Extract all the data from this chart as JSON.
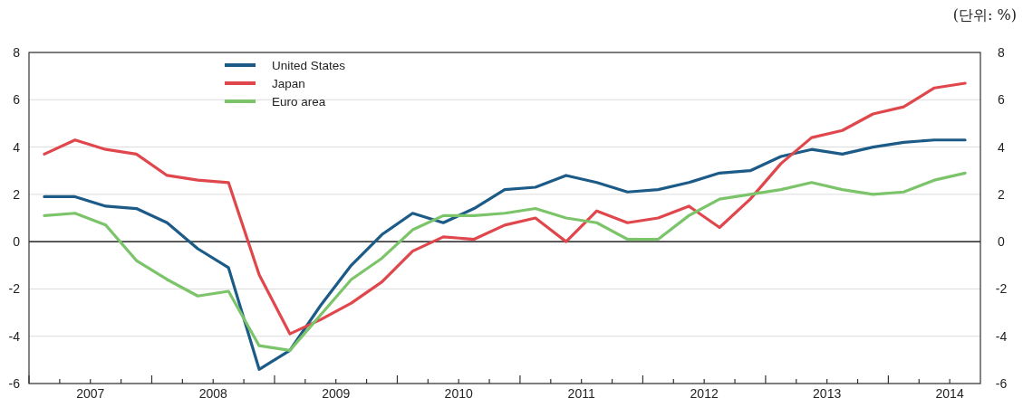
{
  "chart_data": {
    "type": "line",
    "x": [
      2007.125,
      2007.375,
      2007.625,
      2007.875,
      2008.125,
      2008.375,
      2008.625,
      2008.875,
      2009.125,
      2009.375,
      2009.625,
      2009.875,
      2010.125,
      2010.375,
      2010.625,
      2010.875,
      2011.125,
      2011.375,
      2011.625,
      2011.875,
      2012.125,
      2012.375,
      2012.625,
      2012.875,
      2013.125,
      2013.375,
      2013.625,
      2013.875,
      2014.125,
      2014.375,
      2014.625
    ],
    "series": [
      {
        "name": "United States",
        "color": "#1c5b87",
        "values": [
          1.9,
          1.9,
          1.5,
          1.4,
          0.8,
          -0.3,
          -1.1,
          -5.4,
          -4.6,
          -2.7,
          -1.0,
          0.3,
          1.2,
          0.8,
          1.4,
          2.2,
          2.3,
          2.8,
          2.5,
          2.1,
          2.2,
          2.5,
          2.9,
          3.0,
          3.6,
          3.9,
          3.7,
          4.0,
          4.2,
          4.3,
          4.3
        ]
      },
      {
        "name": "Japan",
        "color": "#e0474c",
        "values": [
          3.7,
          4.3,
          3.9,
          3.7,
          2.8,
          2.6,
          2.5,
          -1.4,
          -3.9,
          -3.3,
          -2.6,
          -1.7,
          -0.4,
          0.2,
          0.1,
          0.7,
          1.0,
          0.0,
          1.3,
          0.8,
          1.0,
          1.5,
          0.6,
          1.8,
          3.3,
          4.4,
          4.7,
          5.4,
          5.7,
          6.5,
          6.7
        ]
      },
      {
        "name": "Euro area",
        "color": "#7cc46a",
        "values": [
          1.1,
          1.2,
          0.7,
          -0.8,
          -1.6,
          -2.3,
          -2.1,
          -4.4,
          -4.6,
          -3.1,
          -1.6,
          -0.7,
          0.5,
          1.1,
          1.1,
          1.2,
          1.4,
          1.0,
          0.8,
          0.1,
          0.1,
          1.1,
          1.8,
          2.0,
          2.2,
          2.5,
          2.2,
          2.0,
          2.1,
          2.6,
          2.9
        ]
      }
    ],
    "xlim": [
      2007,
      2014.75
    ],
    "xticks": [
      {
        "value": 2007,
        "label": null
      },
      {
        "value": 2007.25,
        "label": null
      },
      {
        "value": 2007.5,
        "label": "2007"
      },
      {
        "value": 2007.75,
        "label": null
      },
      {
        "value": 2008,
        "label": null
      },
      {
        "value": 2008.25,
        "label": null
      },
      {
        "value": 2008.5,
        "label": "2008"
      },
      {
        "value": 2008.75,
        "label": null
      },
      {
        "value": 2009,
        "label": null
      },
      {
        "value": 2009.25,
        "label": null
      },
      {
        "value": 2009.5,
        "label": "2009"
      },
      {
        "value": 2009.75,
        "label": null
      },
      {
        "value": 2010,
        "label": null
      },
      {
        "value": 2010.25,
        "label": null
      },
      {
        "value": 2010.5,
        "label": "2010"
      },
      {
        "value": 2010.75,
        "label": null
      },
      {
        "value": 2011,
        "label": null
      },
      {
        "value": 2011.25,
        "label": null
      },
      {
        "value": 2011.5,
        "label": "2011"
      },
      {
        "value": 2011.75,
        "label": null
      },
      {
        "value": 2012,
        "label": null
      },
      {
        "value": 2012.25,
        "label": null
      },
      {
        "value": 2012.5,
        "label": "2012"
      },
      {
        "value": 2012.75,
        "label": null
      },
      {
        "value": 2013,
        "label": null
      },
      {
        "value": 2013.25,
        "label": null
      },
      {
        "value": 2013.5,
        "label": "2013"
      },
      {
        "value": 2013.75,
        "label": null
      },
      {
        "value": 2014,
        "label": null
      },
      {
        "value": 2014.25,
        "label": null
      },
      {
        "value": 2014.5,
        "label": "2014"
      }
    ],
    "ylim": [
      -6,
      8
    ],
    "yticks": [
      -6,
      -4,
      -2,
      0,
      2,
      4,
      6,
      8
    ],
    "y2lim": [
      -6,
      8
    ],
    "y2ticks": [
      -6,
      -4,
      -2,
      0,
      2,
      4,
      6,
      8
    ],
    "grid": "y",
    "legend": "top left",
    "ref_lines": [
      {
        "axis": "y",
        "value": 0,
        "color": "#000000"
      }
    ],
    "annotations": [
      "(단위: %)"
    ]
  }
}
